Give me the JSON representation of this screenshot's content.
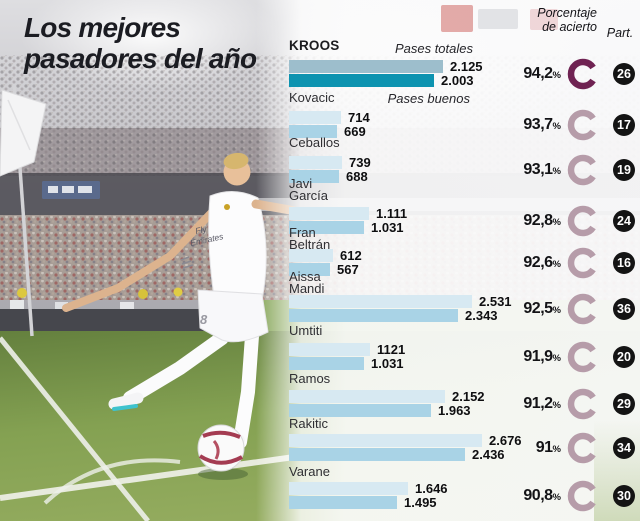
{
  "title": {
    "line1": "Los mejores",
    "line2": "pasadores del año"
  },
  "photo": {
    "jersey_text_line1": "Fly",
    "jersey_text_line2": "Emirates",
    "shorts_number": "8"
  },
  "chart_data": {
    "type": "bar",
    "title": "Los mejores pasadores del año",
    "orientation": "horizontal",
    "series_labels": {
      "total": "Pases totales",
      "good": "Pases buenos"
    },
    "headers": {
      "accuracy_line1": "Porcentaje",
      "accuracy_line2": "de acierto",
      "matches": "Part."
    },
    "percent_suffix": "%",
    "value_range": [
      0,
      2676
    ],
    "players": [
      {
        "name": "KROOS",
        "total": 2125,
        "good": 2003,
        "total_label": "2.125",
        "good_label": "2.003",
        "accuracy": 94.2,
        "accuracy_label": "94,2",
        "matches": "26",
        "highlight": true
      },
      {
        "name": "Kovacic",
        "total": 714,
        "good": 669,
        "total_label": "714",
        "good_label": "669",
        "accuracy": 93.7,
        "accuracy_label": "93,7",
        "matches": "17",
        "highlight": false
      },
      {
        "name": "Ceballos",
        "total": 739,
        "good": 688,
        "total_label": "739",
        "good_label": "688",
        "accuracy": 93.1,
        "accuracy_label": "93,1",
        "matches": "19",
        "highlight": false
      },
      {
        "name": "Javi\nGarcía",
        "total": 1111,
        "good": 1031,
        "total_label": "1.111",
        "good_label": "1.031",
        "accuracy": 92.8,
        "accuracy_label": "92,8",
        "matches": "24",
        "highlight": false
      },
      {
        "name": "Fran\nBeltrán",
        "total": 612,
        "good": 567,
        "total_label": "612",
        "good_label": "567",
        "accuracy": 92.6,
        "accuracy_label": "92,6",
        "matches": "16",
        "highlight": false
      },
      {
        "name": "Aissa\nMandi",
        "total": 2531,
        "good": 2343,
        "total_label": "2.531",
        "good_label": "2.343",
        "accuracy": 92.5,
        "accuracy_label": "92,5",
        "matches": "36",
        "highlight": false
      },
      {
        "name": "Umtiti",
        "total": 1121,
        "good": 1031,
        "total_label": "1121",
        "good_label": "1.031",
        "accuracy": 91.9,
        "accuracy_label": "91,9",
        "matches": "20",
        "highlight": false
      },
      {
        "name": "Ramos",
        "total": 2152,
        "good": 1963,
        "total_label": "2.152",
        "good_label": "1.963",
        "accuracy": 91.2,
        "accuracy_label": "91,2",
        "matches": "29",
        "highlight": false
      },
      {
        "name": "Rakitic",
        "total": 2676,
        "good": 2436,
        "total_label": "2.676",
        "good_label": "2.436",
        "accuracy": 91.0,
        "accuracy_label": "91",
        "matches": "34",
        "highlight": false
      },
      {
        "name": "Varane",
        "total": 1646,
        "good": 1495,
        "total_label": "1.646",
        "good_label": "1.495",
        "accuracy": 90.8,
        "accuracy_label": "90,8",
        "matches": "30",
        "highlight": false
      }
    ],
    "colors": {
      "bar_total_highlight": "#9dbecc",
      "bar_good_highlight": "#0d93b0",
      "bar_total": "#d7e9f2",
      "bar_good": "#a9d3e6",
      "ring_highlight": "#6f2252",
      "ring": "#b69ca9",
      "badge_bg": "#141414",
      "badge_text": "#ffffff"
    }
  }
}
